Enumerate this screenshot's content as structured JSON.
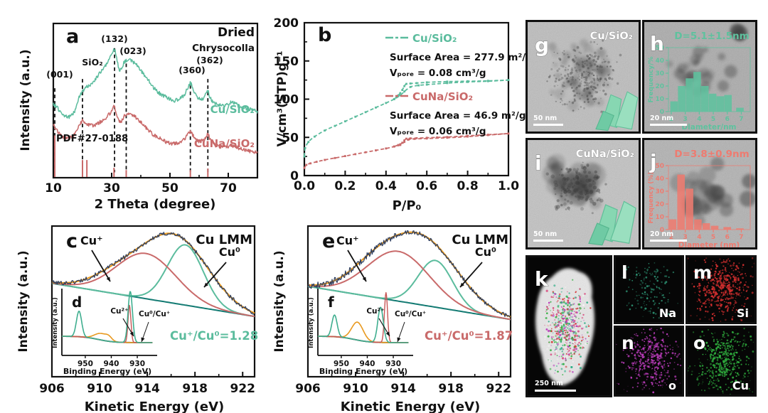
{
  "colors": {
    "teal": "#5bbc9d",
    "salmon": "#c96a6a",
    "hist_teal": "#5ec29e",
    "hist_red": "#ee7b70",
    "orange": "#e8991f",
    "navy": "#2b3c5e",
    "dark_teal": "#127a72",
    "ink": "#111111",
    "eds_na": "#35b08a",
    "eds_si": "#d32f2f",
    "eds_o": "#bb3cbb",
    "eds_cu": "#2fae3e"
  },
  "panels": {
    "a": {
      "letter": "a"
    },
    "b": {
      "letter": "b"
    },
    "c": {
      "letter": "c"
    },
    "d": {
      "letter": "d"
    },
    "e": {
      "letter": "e"
    },
    "f": {
      "letter": "f"
    },
    "g": {
      "letter": "g",
      "label": "Cu/SiO₂",
      "scale": "50 nm"
    },
    "h": {
      "letter": "h",
      "scale": "20 nm"
    },
    "i": {
      "letter": "i",
      "label": "CuNa/SiO₂",
      "scale": "50 nm"
    },
    "j": {
      "letter": "j",
      "scale": "20 nm"
    },
    "k": {
      "letter": "k",
      "scale": "250 nm"
    },
    "l": {
      "letter": "l",
      "element": "Na"
    },
    "m": {
      "letter": "m",
      "element": "Si"
    },
    "n": {
      "letter": "n",
      "element": "o"
    },
    "o": {
      "letter": "o",
      "element": "Cu"
    }
  },
  "chart_data": [
    {
      "id": "a",
      "type": "line",
      "xlabel": "2 Theta (degree)",
      "ylabel": "Intensity (a.u.)",
      "xlim": [
        10,
        80
      ],
      "xticks": [
        10,
        30,
        50,
        70
      ],
      "minor_xticks": [
        20,
        40,
        60,
        80
      ],
      "annotations": {
        "state": "Dried",
        "mineral": "Chrysocolla",
        "ref": "PDF#27-0188",
        "peaks": [
          "(001)",
          "SiO₂",
          "(132)",
          "(023)",
          "(360)",
          "(362)"
        ]
      },
      "guides": [
        [
          10.5,
          0.42
        ],
        [
          20,
          0.36
        ],
        [
          31,
          0.16
        ],
        [
          35,
          0.26
        ],
        [
          57,
          0.4
        ],
        [
          63,
          0.36
        ]
      ],
      "ref_sticks": [
        [
          10.5,
          0.27
        ],
        [
          20,
          0.11
        ],
        [
          21.5,
          0.11
        ],
        [
          30.8,
          0.06
        ],
        [
          35,
          0.045
        ],
        [
          57,
          0.045
        ],
        [
          63,
          0.055
        ]
      ],
      "series": [
        {
          "name": "Cu/SiO₂",
          "color": "teal",
          "points": [
            [
              10,
              0.52
            ],
            [
              12,
              0.56
            ],
            [
              14,
              0.6
            ],
            [
              16,
              0.6
            ],
            [
              17.5,
              0.56
            ],
            [
              19,
              0.47
            ],
            [
              20,
              0.44
            ],
            [
              21,
              0.42
            ],
            [
              22.5,
              0.4
            ],
            [
              24,
              0.37
            ],
            [
              26,
              0.32
            ],
            [
              28,
              0.27
            ],
            [
              29.5,
              0.22
            ],
            [
              30.7,
              0.17
            ],
            [
              31.5,
              0.2
            ],
            [
              32.3,
              0.28
            ],
            [
              33,
              0.3
            ],
            [
              33.8,
              0.27
            ],
            [
              34.8,
              0.24
            ],
            [
              36,
              0.24
            ],
            [
              37.5,
              0.25
            ],
            [
              39,
              0.28
            ],
            [
              41,
              0.33
            ],
            [
              43,
              0.38
            ],
            [
              45,
              0.43
            ],
            [
              47,
              0.46
            ],
            [
              49,
              0.48
            ],
            [
              51,
              0.5
            ],
            [
              53,
              0.49
            ],
            [
              55,
              0.46
            ],
            [
              56.5,
              0.4
            ],
            [
              57.3,
              0.39
            ],
            [
              58,
              0.43
            ],
            [
              59.5,
              0.48
            ],
            [
              61,
              0.49
            ],
            [
              62,
              0.47
            ],
            [
              63,
              0.44
            ],
            [
              64,
              0.49
            ],
            [
              65.5,
              0.52
            ],
            [
              67,
              0.53
            ],
            [
              69,
              0.53
            ],
            [
              71,
              0.51
            ],
            [
              72.5,
              0.52
            ],
            [
              74,
              0.54
            ],
            [
              76,
              0.55
            ],
            [
              78,
              0.56
            ],
            [
              80,
              0.57
            ]
          ]
        },
        {
          "name": "CuNa/SiO₂",
          "color": "salmon",
          "points": [
            [
              10,
              0.66
            ],
            [
              12,
              0.71
            ],
            [
              14,
              0.74
            ],
            [
              16,
              0.74
            ],
            [
              17.5,
              0.71
            ],
            [
              19,
              0.66
            ],
            [
              20,
              0.63
            ],
            [
              21,
              0.65
            ],
            [
              22.5,
              0.66
            ],
            [
              24,
              0.66
            ],
            [
              26,
              0.64
            ],
            [
              28,
              0.61
            ],
            [
              29.5,
              0.58
            ],
            [
              30.7,
              0.54
            ],
            [
              31.5,
              0.57
            ],
            [
              32.3,
              0.62
            ],
            [
              33,
              0.64
            ],
            [
              33.8,
              0.62
            ],
            [
              34.8,
              0.59
            ],
            [
              36,
              0.59
            ],
            [
              37.5,
              0.6
            ],
            [
              39,
              0.62
            ],
            [
              41,
              0.66
            ],
            [
              43,
              0.7
            ],
            [
              45,
              0.73
            ],
            [
              47,
              0.75
            ],
            [
              49,
              0.77
            ],
            [
              51,
              0.78
            ],
            [
              53,
              0.77
            ],
            [
              55,
              0.75
            ],
            [
              56.5,
              0.71
            ],
            [
              57.3,
              0.7
            ],
            [
              58,
              0.73
            ],
            [
              59.5,
              0.76
            ],
            [
              61,
              0.76
            ],
            [
              62,
              0.75
            ],
            [
              63,
              0.72
            ],
            [
              64,
              0.76
            ],
            [
              65.5,
              0.79
            ],
            [
              67,
              0.8
            ],
            [
              69,
              0.8
            ],
            [
              71,
              0.79
            ],
            [
              72.5,
              0.8
            ],
            [
              74,
              0.81
            ],
            [
              76,
              0.82
            ],
            [
              78,
              0.83
            ],
            [
              80,
              0.84
            ]
          ]
        }
      ]
    },
    {
      "id": "b",
      "type": "line",
      "xlabel": "P/P₀",
      "ylabel": "V/cm³(STP)g⁻¹",
      "xlim": [
        0,
        1
      ],
      "ylim": [
        0,
        200
      ],
      "xticks": [
        0,
        0.2,
        0.4,
        0.6,
        0.8,
        1
      ],
      "xtick_labels": [
        "0.0",
        "0.2",
        "0.4",
        "0.6",
        "0.8",
        "1.0"
      ],
      "yticks": [
        0,
        50,
        100,
        150,
        200
      ],
      "minor_xticks": [
        0.1,
        0.3,
        0.5,
        0.7,
        0.9
      ],
      "minor_yticks": [
        25,
        75,
        125,
        175
      ],
      "series": [
        {
          "name": "Cu/SiO₂",
          "color": "teal",
          "surface_area": "Surface Area = 277.9 m²/g",
          "v_pore": "Vₚₒᵣₑ = 0.08 cm³/g",
          "adsorption": [
            [
              0,
              25
            ],
            [
              0.004,
              36
            ],
            [
              0.02,
              44
            ],
            [
              0.05,
              51
            ],
            [
              0.1,
              59
            ],
            [
              0.15,
              65
            ],
            [
              0.2,
              71
            ],
            [
              0.25,
              77
            ],
            [
              0.3,
              83
            ],
            [
              0.35,
              89
            ],
            [
              0.4,
              95
            ],
            [
              0.44,
              100
            ],
            [
              0.47,
              105
            ],
            [
              0.49,
              110
            ],
            [
              0.52,
              116
            ],
            [
              0.56,
              118
            ],
            [
              0.6,
              119
            ],
            [
              0.7,
              121
            ],
            [
              0.8,
              122.5
            ],
            [
              0.9,
              123.5
            ],
            [
              1,
              125
            ]
          ],
          "desorption": [
            [
              0.44,
              100
            ],
            [
              0.46,
              105
            ],
            [
              0.47,
              108
            ],
            [
              0.48,
              112
            ],
            [
              0.49,
              117
            ],
            [
              0.5,
              120
            ],
            [
              0.52,
              120.5
            ],
            [
              0.55,
              121
            ],
            [
              0.6,
              122
            ],
            [
              0.7,
              123
            ],
            [
              0.8,
              123.5
            ],
            [
              0.9,
              124
            ],
            [
              1,
              125
            ]
          ]
        },
        {
          "name": "CuNa/SiO₂",
          "color": "salmon",
          "surface_area": "Surface Area = 46.9 m²/g",
          "v_pore": "Vₚₒᵣₑ = 0.06 cm³/g",
          "adsorption": [
            [
              0,
              10
            ],
            [
              0.01,
              14
            ],
            [
              0.03,
              16
            ],
            [
              0.06,
              18
            ],
            [
              0.1,
              20.5
            ],
            [
              0.15,
              23
            ],
            [
              0.2,
              25.5
            ],
            [
              0.25,
              28
            ],
            [
              0.3,
              30.5
            ],
            [
              0.35,
              33
            ],
            [
              0.4,
              35.5
            ],
            [
              0.44,
              38
            ],
            [
              0.47,
              40
            ],
            [
              0.49,
              44
            ],
            [
              0.51,
              47
            ],
            [
              0.54,
              48
            ],
            [
              0.6,
              48.5
            ],
            [
              0.7,
              49.5
            ],
            [
              0.8,
              51
            ],
            [
              0.9,
              53
            ],
            [
              1,
              55
            ]
          ],
          "desorption": [
            [
              0.44,
              38
            ],
            [
              0.46,
              40
            ],
            [
              0.47,
              41
            ],
            [
              0.48,
              43
            ],
            [
              0.49,
              46
            ],
            [
              0.5,
              48.3
            ],
            [
              0.52,
              48.7
            ],
            [
              0.55,
              49
            ],
            [
              0.6,
              49.5
            ],
            [
              0.65,
              50
            ],
            [
              0.7,
              50.5
            ],
            [
              0.8,
              52
            ],
            [
              0.9,
              53.5
            ],
            [
              1,
              55
            ]
          ]
        }
      ]
    },
    {
      "id": "c",
      "type": "line",
      "xlabel": "Kinetic Energy (eV)",
      "ylabel": "Intensity (a.u.)",
      "xlim": [
        906,
        923
      ],
      "xticks": [
        906,
        910,
        914,
        918,
        922
      ],
      "minor_xticks": [
        908,
        912,
        916,
        920
      ],
      "annotations": {
        "title": "Cu LMM",
        "cu_plus": "Cu⁺",
        "cu_zero": "Cu⁰",
        "ratio": "Cu⁺/Cu⁰=1.28"
      },
      "baseline": [
        0.62,
        0.4
      ],
      "red_peak": [
        913.9,
        2.5,
        0.3
      ],
      "teal_peak": [
        917.2,
        1.5,
        0.4
      ],
      "envelope": [
        [
          916.4,
          2.7,
          0.44
        ],
        [
          911.8,
          2.3,
          0.13
        ]
      ],
      "noise": [
        0.014,
        0.014
      ]
    },
    {
      "id": "d",
      "type": "line",
      "xlabel": "Binding Energy (eV)",
      "ylabel": "Intensity (a.u.)",
      "xlim": [
        924,
        959
      ],
      "xticks": [
        950,
        940,
        930
      ],
      "annotations": {
        "cu2plus": "Cu²⁺",
        "cu0_cuplus": "Cu⁰/Cu⁺"
      },
      "teal": [
        [
          952.4,
          1.0,
          0.4
        ],
        [
          932.7,
          0.85,
          0.8
        ]
      ],
      "red": [
        [
          933.0,
          0.55,
          0.58
        ]
      ],
      "orange": [
        [
          944,
          2.4,
          0.1
        ],
        [
          941,
          1.2,
          0.05
        ]
      ]
    },
    {
      "id": "e",
      "type": "line",
      "xlabel": "Kinetic Energy (eV)",
      "ylabel": "Intensity (a.u.)",
      "xlim": [
        906,
        923
      ],
      "xticks": [
        906,
        910,
        914,
        918,
        922
      ],
      "minor_xticks": [
        908,
        912,
        916,
        920
      ],
      "annotations": {
        "title": "Cu LMM",
        "cu_plus": "Cu⁺",
        "cu_zero": "Cu⁰",
        "ratio": "Cu⁺/Cu⁰=1.87"
      },
      "baseline": [
        0.6,
        0.38
      ],
      "red_peak": [
        913.6,
        2.6,
        0.33
      ],
      "teal_peak": [
        916.7,
        1.45,
        0.31
      ],
      "envelope": [
        [
          915.6,
          2.9,
          0.44
        ],
        [
          911.5,
          2.2,
          0.15
        ]
      ],
      "noise": [
        0.022,
        0.013
      ]
    },
    {
      "id": "f",
      "type": "line",
      "xlabel": "Binding Energy (eV)",
      "ylabel": "Intensity (a.u.)",
      "xlim": [
        924,
        959
      ],
      "xticks": [
        950,
        940,
        930
      ],
      "annotations": {
        "cu2plus": "Cu²⁺",
        "cu0_cuplus": "Cu⁰/Cu⁺"
      },
      "teal": [
        [
          952.6,
          1.0,
          0.34
        ],
        [
          934.9,
          1.05,
          0.55
        ]
      ],
      "red": [
        [
          932.8,
          0.6,
          0.78
        ]
      ],
      "orange": [
        [
          943.8,
          2.2,
          0.28
        ]
      ]
    },
    {
      "id": "h",
      "type": "bar",
      "annotation": "D=5.1±1.5nm",
      "xlabel": "Diameter/nm",
      "ylabel": "Frequency/%",
      "xticks": [
        2,
        3,
        4,
        5,
        6,
        7
      ],
      "yticks": [
        0,
        10,
        20,
        30,
        40,
        50
      ],
      "centers": [
        2.2,
        2.75,
        3.3,
        3.85,
        4.4,
        4.95,
        5.5,
        6.05,
        6.9
      ],
      "values": [
        8,
        20,
        26,
        31,
        20,
        14,
        12,
        13,
        3
      ]
    },
    {
      "id": "j",
      "type": "bar",
      "annotation": "D=3.8±0.9nm",
      "xlabel": "Diameter (nm)",
      "ylabel": "Frequency (%)",
      "xticks": [
        2,
        3,
        4,
        5,
        6,
        7
      ],
      "yticks": [
        0,
        10,
        20,
        30,
        40,
        50
      ],
      "centers": [
        2.1,
        2.7,
        3.3,
        3.9,
        4.5,
        5.1,
        6.0,
        6.9
      ],
      "values": [
        8,
        43,
        32,
        8,
        5,
        3,
        2,
        1
      ]
    }
  ]
}
